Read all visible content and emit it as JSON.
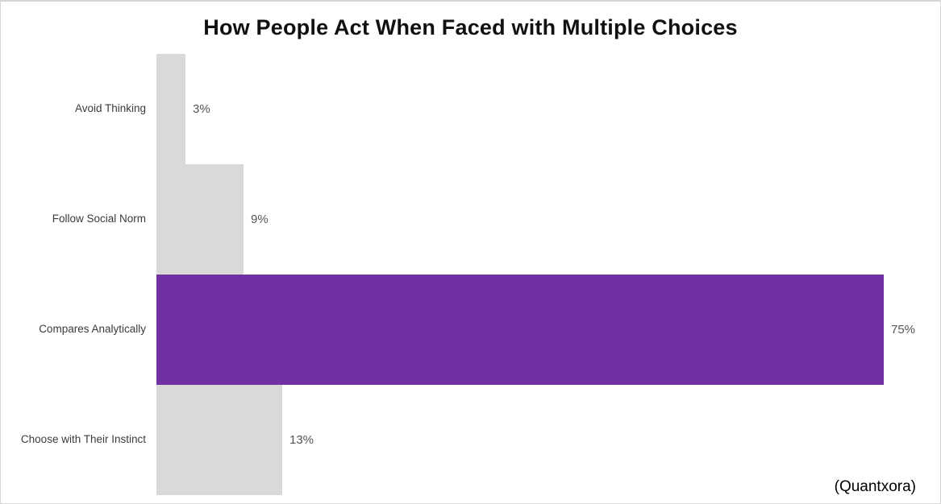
{
  "title": "How People Act When Faced with Multiple Choices",
  "source": "(Quantxora)",
  "colors": {
    "bar_default": "#D9D9D9",
    "bar_highlight": "#7231A3",
    "title_text": "#111111",
    "category_text": "#3B3B3B",
    "value_text": "#555555"
  },
  "chart_data": {
    "type": "bar",
    "orientation": "horizontal",
    "title": "How People Act When Faced with Multiple Choices",
    "categories": [
      "Avoid Thinking",
      "Follow Social Norm",
      "Compares Analytically",
      "Choose with Their Instinct"
    ],
    "values": [
      3,
      9,
      75,
      13
    ],
    "value_labels": [
      "3%",
      "9%",
      "75%",
      "13%"
    ],
    "highlight_index": 2,
    "xlabel": "",
    "ylabel": "",
    "xlim": [
      0,
      78
    ],
    "grid": false,
    "legend": false,
    "bar_gap": 0,
    "value_label_position": "outside-end",
    "source_annotation": "(Quantxora)"
  }
}
